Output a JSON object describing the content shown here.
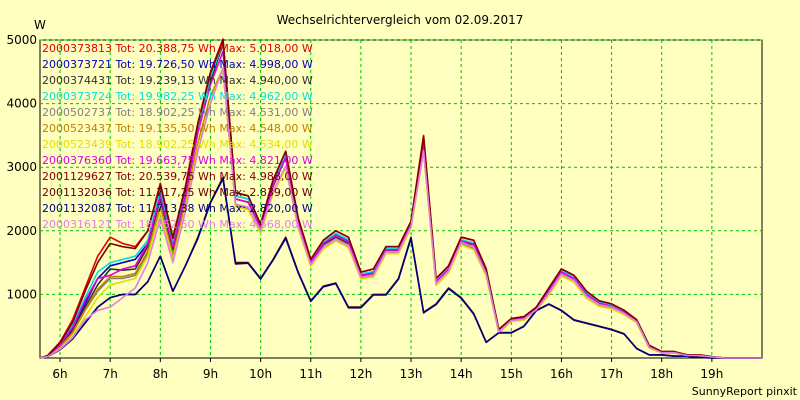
{
  "chart_data": {
    "type": "line",
    "title": "Wechselrichtervergleich vom 02.09.2017",
    "ylabel": "W",
    "footer": "SunnyReport pinxit",
    "ylim": [
      0,
      5000
    ],
    "xlim": [
      5.6,
      20.0
    ],
    "yticks": [
      1000,
      2000,
      3000,
      4000,
      5000
    ],
    "ytick_labels": [
      "1000",
      "2000",
      "3000",
      "4000",
      "5000"
    ],
    "xticks": [
      6,
      7,
      8,
      9,
      10,
      11,
      12,
      13,
      14,
      15,
      16,
      17,
      18,
      19
    ],
    "xtick_labels": [
      "6h",
      "7h",
      "8h",
      "9h",
      "10h",
      "11h",
      "12h",
      "13h",
      "14h",
      "15h",
      "16h",
      "17h",
      "18h",
      "19h"
    ],
    "grid": true,
    "legend_position": "top-left",
    "x": [
      5.6,
      5.75,
      6.0,
      6.25,
      6.5,
      6.75,
      7.0,
      7.25,
      7.5,
      7.75,
      8.0,
      8.25,
      8.5,
      8.75,
      9.0,
      9.25,
      9.5,
      9.75,
      10.0,
      10.25,
      10.5,
      10.75,
      11.0,
      11.25,
      11.5,
      11.75,
      12.0,
      12.25,
      12.5,
      12.75,
      13.0,
      13.25,
      13.5,
      13.75,
      14.0,
      14.25,
      14.5,
      14.75,
      15.0,
      15.25,
      15.5,
      15.75,
      16.0,
      16.25,
      16.5,
      16.75,
      17.0,
      17.25,
      17.5,
      17.75,
      18.0,
      18.25,
      18.5,
      18.75,
      19.0,
      19.25,
      19.5,
      19.75,
      20.0
    ],
    "series": [
      {
        "name": "2000373813 Tot: 20.388,75 Wh Max: 5.018,00 W",
        "color": "#e00000",
        "values": [
          0,
          40,
          250,
          600,
          1100,
          1600,
          1900,
          1800,
          1750,
          2000,
          2750,
          1900,
          2700,
          3700,
          4500,
          5018,
          2600,
          2550,
          2100,
          2800,
          3250,
          2200,
          1550,
          1850,
          2000,
          1900,
          1350,
          1400,
          1750,
          1750,
          2150,
          3500,
          1250,
          1450,
          1900,
          1850,
          1400,
          450,
          620,
          650,
          800,
          1100,
          1400,
          1300,
          1050,
          900,
          850,
          750,
          600,
          200,
          100,
          100,
          50,
          50,
          20,
          0,
          0,
          0,
          0
        ]
      },
      {
        "name": "2000373721 Tot: 19.726,50 Wh Max: 4.998,00 W",
        "color": "#0000c0",
        "values": [
          0,
          30,
          200,
          450,
          850,
          1250,
          1450,
          1500,
          1550,
          1800,
          2600,
          1750,
          2600,
          3600,
          4400,
          4998,
          2550,
          2500,
          2100,
          2750,
          3200,
          2150,
          1500,
          1800,
          1950,
          1850,
          1300,
          1350,
          1700,
          1700,
          2100,
          3400,
          1200,
          1400,
          1850,
          1800,
          1350,
          420,
          600,
          630,
          780,
          1050,
          1350,
          1250,
          1000,
          860,
          820,
          720,
          580,
          180,
          90,
          90,
          45,
          45,
          18,
          0,
          0,
          0,
          0
        ]
      },
      {
        "name": "2000374431 Tot: 19.239,13 Wh Max: 4.940,00 W",
        "color": "#303030",
        "values": [
          0,
          25,
          180,
          420,
          800,
          1150,
          1400,
          1380,
          1400,
          1750,
          2500,
          1700,
          2550,
          3550,
          4350,
          4940,
          2500,
          2450,
          2050,
          2700,
          3150,
          2100,
          1480,
          1780,
          1900,
          1800,
          1280,
          1300,
          1680,
          1680,
          2080,
          3350,
          1180,
          1380,
          1820,
          1780,
          1330,
          410,
          590,
          620,
          770,
          1030,
          1330,
          1230,
          980,
          850,
          810,
          710,
          570,
          170,
          85,
          85,
          40,
          40,
          15,
          0,
          0,
          0,
          0
        ]
      },
      {
        "name": "2000373724 Tot: 19.982,25 Wh Max: 4.962,00 W",
        "color": "#00e0e0",
        "values": [
          0,
          35,
          230,
          520,
          950,
          1350,
          1500,
          1550,
          1600,
          1850,
          2650,
          1800,
          2650,
          3650,
          4420,
          4962,
          2550,
          2500,
          2080,
          2750,
          3200,
          2150,
          1520,
          1820,
          1960,
          1860,
          1320,
          1360,
          1720,
          1720,
          2120,
          3420,
          1220,
          1420,
          1860,
          1810,
          1360,
          430,
          610,
          640,
          790,
          1070,
          1370,
          1270,
          1020,
          880,
          830,
          730,
          590,
          190,
          95,
          95,
          48,
          48,
          18,
          0,
          0,
          0,
          0
        ]
      },
      {
        "name": "2000502737 Tot: 18.902,25 Wh Max: 4.531,00 W",
        "color": "#808080",
        "values": [
          0,
          25,
          170,
          400,
          750,
          1050,
          1250,
          1250,
          1300,
          1650,
          2350,
          1600,
          2400,
          3350,
          4100,
          4531,
          2400,
          2350,
          1980,
          2600,
          3000,
          2050,
          1450,
          1720,
          1850,
          1750,
          1250,
          1280,
          1650,
          1650,
          2050,
          3250,
          1150,
          1350,
          1800,
          1720,
          1300,
          400,
          580,
          600,
          750,
          1000,
          1300,
          1200,
          950,
          820,
          780,
          690,
          560,
          160,
          80,
          80,
          38,
          38,
          14,
          0,
          0,
          0,
          0
        ]
      },
      {
        "name": "2000523437 Tot: 19.135,50 Wh Max: 4.548,00 W",
        "color": "#c08000",
        "values": [
          0,
          25,
          170,
          400,
          760,
          1080,
          1280,
          1280,
          1330,
          1680,
          2380,
          1620,
          2420,
          3380,
          4120,
          4548,
          2410,
          2360,
          1990,
          2610,
          3010,
          2060,
          1460,
          1730,
          1860,
          1760,
          1260,
          1290,
          1660,
          1660,
          2060,
          3280,
          1160,
          1360,
          1810,
          1730,
          1310,
          405,
          585,
          605,
          755,
          1010,
          1310,
          1210,
          960,
          830,
          790,
          695,
          565,
          165,
          82,
          82,
          40,
          40,
          15,
          0,
          0,
          0,
          0
        ]
      },
      {
        "name": "2000523439 Tot: 18.902,25 Wh Max: 4.534,00 W",
        "color": "#e0e000",
        "values": [
          0,
          20,
          150,
          350,
          650,
          950,
          1150,
          1200,
          1250,
          1600,
          2300,
          1550,
          2350,
          3300,
          4050,
          4534,
          2380,
          2330,
          1960,
          2580,
          2980,
          2040,
          1440,
          1710,
          1840,
          1740,
          1240,
          1270,
          1640,
          1640,
          2040,
          3250,
          1140,
          1340,
          1780,
          1700,
          1290,
          395,
          575,
          595,
          745,
          990,
          1290,
          1190,
          940,
          810,
          770,
          680,
          555,
          155,
          78,
          78,
          36,
          36,
          13,
          0,
          0,
          0,
          0
        ]
      },
      {
        "name": "2000376360 Tot: 19.663,75 Wh Max: 4.821,00 W",
        "color": "#e000e0",
        "values": [
          0,
          30,
          210,
          480,
          900,
          1250,
          1300,
          1400,
          1450,
          1800,
          2550,
          1750,
          2550,
          3550,
          4300,
          4821,
          2500,
          2450,
          2060,
          2720,
          3150,
          2120,
          1500,
          1800,
          1930,
          1830,
          1300,
          1330,
          1700,
          1700,
          2100,
          3380,
          1200,
          1400,
          1840,
          1790,
          1340,
          420,
          600,
          625,
          775,
          1050,
          1350,
          1250,
          1000,
          860,
          815,
          715,
          575,
          175,
          88,
          88,
          42,
          42,
          16,
          0,
          0,
          0,
          0
        ]
      },
      {
        "name": "2001129627 Tot: 20.539,75 Wh Max: 4.988,00 W",
        "color": "#800000",
        "values": [
          0,
          35,
          240,
          560,
          1050,
          1500,
          1800,
          1750,
          1720,
          2000,
          2720,
          1880,
          2680,
          3680,
          4480,
          4988,
          2600,
          2550,
          2100,
          2800,
          3250,
          2200,
          1550,
          1850,
          2000,
          1900,
          1350,
          1400,
          1750,
          1750,
          2150,
          3480,
          1250,
          1450,
          1900,
          1850,
          1400,
          450,
          620,
          650,
          800,
          1100,
          1400,
          1300,
          1050,
          900,
          850,
          750,
          600,
          200,
          100,
          100,
          50,
          50,
          20,
          0,
          0,
          0,
          0
        ]
      },
      {
        "name": "2001132036 Tot: 11.717,25 Wh Max: 2.839,00 W",
        "color": "#600000",
        "values": [
          0,
          20,
          130,
          300,
          550,
          800,
          950,
          1000,
          1000,
          1200,
          1600,
          1050,
          1450,
          1900,
          2450,
          2839,
          1500,
          1500,
          1250,
          1550,
          1900,
          1350,
          900,
          1130,
          1180,
          800,
          800,
          1000,
          1000,
          1250,
          1900,
          720,
          850,
          1100,
          950,
          700,
          250,
          400,
          400,
          500,
          750,
          850,
          750,
          600,
          550,
          500,
          450,
          380,
          150,
          50,
          50,
          30,
          30,
          10,
          0,
          0,
          0,
          0,
          0
        ]
      },
      {
        "name": "2001132087 Tot: 11.713,38 Wh Max: 2.820,00 W",
        "color": "#000080",
        "values": [
          0,
          20,
          130,
          300,
          550,
          800,
          950,
          1000,
          1000,
          1200,
          1600,
          1050,
          1450,
          1880,
          2440,
          2820,
          1480,
          1490,
          1240,
          1540,
          1880,
          1340,
          890,
          1120,
          1170,
          790,
          790,
          990,
          990,
          1240,
          1880,
          710,
          840,
          1090,
          940,
          690,
          245,
          395,
          395,
          495,
          745,
          845,
          745,
          595,
          545,
          495,
          445,
          375,
          148,
          48,
          48,
          28,
          28,
          9,
          0,
          0,
          0,
          0,
          0
        ]
      },
      {
        "name": "2000316121 Tot: 18.752,50 Wh Max: 4.568,00 W",
        "color": "#e080e0",
        "values": [
          0,
          20,
          140,
          320,
          600,
          750,
          800,
          950,
          1100,
          1500,
          2200,
          1500,
          2300,
          3250,
          4000,
          4568,
          2420,
          2370,
          2000,
          2620,
          3020,
          2070,
          1470,
          1740,
          1870,
          1770,
          1270,
          1300,
          1670,
          1670,
          2070,
          3260,
          1170,
          1370,
          1820,
          1740,
          1320,
          410,
          590,
          610,
          760,
          1020,
          1320,
          1220,
          970,
          840,
          800,
          700,
          570,
          170,
          84,
          84,
          40,
          40,
          15,
          0,
          0,
          0,
          0
        ]
      }
    ]
  }
}
